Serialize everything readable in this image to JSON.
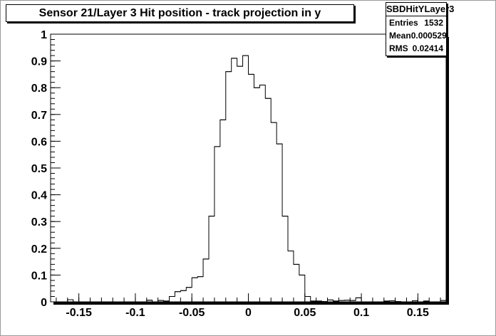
{
  "chart_data": {
    "type": "histogram",
    "title": "Sensor 21/Layer 3 Hit position - track projection in y",
    "xlabel": "",
    "ylabel": "",
    "xlim": [
      -0.175,
      0.175
    ],
    "ylim": [
      0,
      1
    ],
    "bin_width": 0.005,
    "x_ticks": [
      -0.15,
      -0.1,
      -0.05,
      0,
      0.05,
      0.1,
      0.15
    ],
    "x_tick_labels": [
      "-0.15",
      "-0.1",
      "-0.05",
      "0",
      "0.05",
      "0.1",
      "0.15"
    ],
    "y_ticks": [
      0,
      0.1,
      0.2,
      0.3,
      0.4,
      0.5,
      0.6,
      0.7,
      0.8,
      0.9,
      1
    ],
    "y_tick_labels": [
      "0",
      "0.1",
      "0.2",
      "0.3",
      "0.4",
      "0.5",
      "0.6",
      "0.7",
      "0.8",
      "0.9",
      "1"
    ],
    "grid": false,
    "x": [
      -0.1725,
      -0.1675,
      -0.1625,
      -0.1575,
      -0.1525,
      -0.1475,
      -0.1425,
      -0.1375,
      -0.1325,
      -0.1275,
      -0.1225,
      -0.1175,
      -0.1125,
      -0.1075,
      -0.1025,
      -0.0975,
      -0.0925,
      -0.0875,
      -0.0825,
      -0.0775,
      -0.0725,
      -0.0675,
      -0.0625,
      -0.0575,
      -0.0525,
      -0.0475,
      -0.0425,
      -0.0375,
      -0.0325,
      -0.0275,
      -0.0225,
      -0.0175,
      -0.0125,
      -0.0075,
      -0.0025,
      0.0025,
      0.0075,
      0.0125,
      0.0175,
      0.0225,
      0.0275,
      0.0325,
      0.0375,
      0.0425,
      0.0475,
      0.0525,
      0.0575,
      0.0625,
      0.0675,
      0.0725,
      0.0775,
      0.0825,
      0.0875,
      0.0925,
      0.0975,
      0.1025,
      0.1075,
      0.1125,
      0.1175,
      0.1225,
      0.1275,
      0.1325,
      0.1375,
      0.1425,
      0.1475,
      0.1525,
      0.1575,
      0.1625,
      0.1675,
      0.1725
    ],
    "values": [
      0,
      0,
      0,
      0.008,
      0,
      0,
      0,
      0,
      0,
      0,
      0,
      0,
      0,
      0,
      0,
      0,
      0,
      0.006,
      0,
      0.005,
      0.003,
      0.02,
      0.038,
      0.042,
      0.054,
      0.09,
      0.094,
      0.16,
      0.32,
      0.58,
      0.68,
      0.86,
      0.91,
      0.88,
      0.92,
      0.85,
      0.8,
      0.81,
      0.76,
      0.67,
      0.59,
      0.32,
      0.19,
      0.14,
      0.1,
      0.02,
      0.003,
      0.003,
      0.001,
      0.007,
      0.003,
      0.005,
      0.006,
      0.005,
      0.015,
      0,
      0,
      0,
      0,
      0.003,
      0.004,
      0.001,
      0,
      0,
      0.004,
      0,
      0.003,
      0,
      0,
      0.005
    ],
    "stats": {
      "name": "SBDHitYLayer3",
      "rows": [
        {
          "label": "Entries",
          "value": "1532"
        },
        {
          "label": "Mean",
          "value": "0.000529"
        },
        {
          "label": "RMS",
          "value": "0.02414"
        }
      ]
    },
    "colors": {
      "frame_background": "#ffffff",
      "line": "#000000",
      "canvas_border": "#9a9a9a"
    }
  }
}
